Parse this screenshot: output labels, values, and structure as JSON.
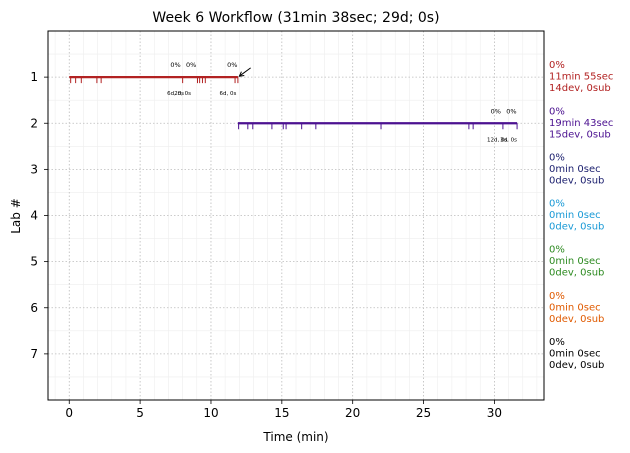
{
  "chart_data": {
    "type": "timeline",
    "title": "Week 6 Workflow (31min 38sec; 29d; 0s)",
    "xlabel": "Time (min)",
    "ylabel": "Lab #",
    "xlim": [
      -1.5,
      33.5
    ],
    "ylim": [
      0,
      8
    ],
    "y_inverted": true,
    "grid": true,
    "minor_grid": true,
    "xticks": [
      "0",
      "5",
      "10",
      "15",
      "20",
      "25",
      "30"
    ],
    "yticks": [
      "1",
      "2",
      "3",
      "4",
      "5",
      "6",
      "7"
    ],
    "labs": [
      {
        "lab": 1,
        "color": "#b22222",
        "start": 0.0,
        "end": 11.9,
        "ticks": [
          0.1,
          0.45,
          0.85,
          1.95,
          2.25,
          8.0,
          9.05,
          9.2,
          9.4,
          9.6,
          11.7,
          11.9
        ],
        "pct_labels": [
          {
            "x": 7.5,
            "text": "0%"
          },
          {
            "x": 8.6,
            "text": "0%"
          },
          {
            "x": 11.5,
            "text": "0%"
          }
        ],
        "sub_labels": [
          {
            "x": 7.5,
            "text": "6d, 0s"
          },
          {
            "x": 8.0,
            "text": "2d, 0s"
          },
          {
            "x": 11.2,
            "text": "6d, 0s"
          }
        ],
        "side": [
          "0%",
          "11min 55sec",
          "14dev, 0sub"
        ]
      },
      {
        "lab": 2,
        "color": "#4b1190",
        "start": 11.9,
        "end": 31.6,
        "ticks": [
          11.95,
          12.6,
          12.95,
          14.3,
          15.1,
          15.3,
          16.4,
          17.4,
          22.0,
          28.2,
          28.5,
          30.6,
          31.6
        ],
        "pct_labels": [
          {
            "x": 30.1,
            "text": "0%"
          },
          {
            "x": 31.2,
            "text": "0%"
          }
        ],
        "sub_labels": [
          {
            "x": 30.2,
            "text": "12d, 0s"
          },
          {
            "x": 31.0,
            "text": "3d, 0s"
          }
        ],
        "side": [
          "0%",
          "19min 43sec",
          "15dev, 0sub"
        ]
      },
      {
        "lab": 3,
        "color": "#1b1f6e",
        "side": [
          "0%",
          "0min 0sec",
          "0dev, 0sub"
        ]
      },
      {
        "lab": 4,
        "color": "#1a9ad6",
        "side": [
          "0%",
          "0min 0sec",
          "0dev, 0sub"
        ]
      },
      {
        "lab": 5,
        "color": "#2e8b22",
        "side": [
          "0%",
          "0min 0sec",
          "0dev, 0sub"
        ]
      },
      {
        "lab": 6,
        "color": "#e05a00",
        "side": [
          "0%",
          "0min 0sec",
          "0dev, 0sub"
        ]
      },
      {
        "lab": 7,
        "color": "#000000",
        "side": [
          "0%",
          "0min 0sec",
          "0dev, 0sub"
        ]
      }
    ],
    "annotation_arrow": {
      "from": [
        12.8,
        0.8
      ],
      "to": [
        12.0,
        0.98
      ]
    }
  }
}
